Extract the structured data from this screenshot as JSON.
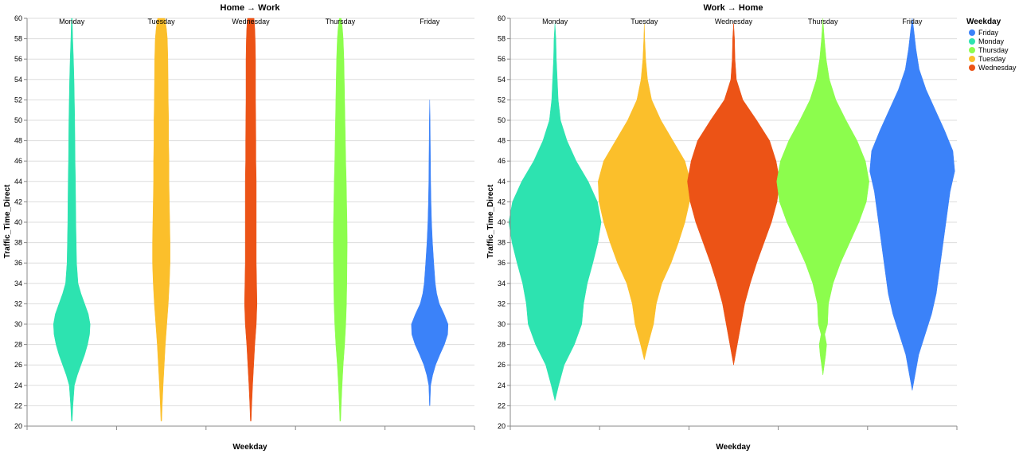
{
  "chart_data": [
    {
      "type": "violin",
      "title": "Home → Work",
      "xlabel": "Weekday",
      "ylabel": "Traffic_Time_Direct",
      "ylim": [
        20,
        60
      ],
      "yticks": [
        20,
        22,
        24,
        26,
        28,
        30,
        32,
        34,
        36,
        38,
        40,
        42,
        44,
        46,
        48,
        50,
        52,
        54,
        56,
        58,
        60
      ],
      "grid": true,
      "categories": [
        "Monday",
        "Tuesday",
        "Wednesday",
        "Thursday",
        "Friday"
      ],
      "series": [
        {
          "category": "Monday",
          "color": "#2de3b0",
          "density": [
            [
              20.5,
              0.02
            ],
            [
              22,
              0.06
            ],
            [
              24,
              0.14
            ],
            [
              25,
              0.3
            ],
            [
              26,
              0.5
            ],
            [
              27,
              0.7
            ],
            [
              28,
              0.86
            ],
            [
              29,
              0.97
            ],
            [
              30,
              1.0
            ],
            [
              31,
              0.9
            ],
            [
              32,
              0.7
            ],
            [
              33,
              0.5
            ],
            [
              34,
              0.34
            ],
            [
              36,
              0.26
            ],
            [
              38,
              0.24
            ],
            [
              40,
              0.22
            ],
            [
              42,
              0.21
            ],
            [
              44,
              0.2
            ],
            [
              46,
              0.18
            ],
            [
              48,
              0.17
            ],
            [
              50,
              0.16
            ],
            [
              52,
              0.14
            ],
            [
              54,
              0.12
            ],
            [
              56,
              0.09
            ],
            [
              58,
              0.05
            ],
            [
              60,
              0.02
            ]
          ]
        },
        {
          "category": "Tuesday",
          "color": "#fbbf2b",
          "density": [
            [
              20.5,
              0.02
            ],
            [
              22,
              0.05
            ],
            [
              24,
              0.1
            ],
            [
              26,
              0.16
            ],
            [
              28,
              0.22
            ],
            [
              30,
              0.3
            ],
            [
              32,
              0.38
            ],
            [
              34,
              0.44
            ],
            [
              36,
              0.48
            ],
            [
              38,
              0.48
            ],
            [
              40,
              0.46
            ],
            [
              42,
              0.44
            ],
            [
              44,
              0.42
            ],
            [
              46,
              0.42
            ],
            [
              48,
              0.4
            ],
            [
              50,
              0.4
            ],
            [
              52,
              0.38
            ],
            [
              54,
              0.37
            ],
            [
              56,
              0.36
            ],
            [
              58,
              0.33
            ],
            [
              59,
              0.28
            ],
            [
              60,
              0.2
            ]
          ]
        },
        {
          "category": "Wednesday",
          "color": "#ec5316",
          "density": [
            [
              20.5,
              0.02
            ],
            [
              22,
              0.05
            ],
            [
              24,
              0.1
            ],
            [
              26,
              0.16
            ],
            [
              28,
              0.22
            ],
            [
              30,
              0.3
            ],
            [
              32,
              0.34
            ],
            [
              34,
              0.32
            ],
            [
              36,
              0.3
            ],
            [
              38,
              0.3
            ],
            [
              40,
              0.3
            ],
            [
              42,
              0.3
            ],
            [
              44,
              0.3
            ],
            [
              46,
              0.28
            ],
            [
              48,
              0.28
            ],
            [
              50,
              0.27
            ],
            [
              52,
              0.26
            ],
            [
              54,
              0.26
            ],
            [
              56,
              0.26
            ],
            [
              58,
              0.24
            ],
            [
              59,
              0.22
            ],
            [
              60,
              0.18
            ]
          ]
        },
        {
          "category": "Thursday",
          "color": "#8cfd4d",
          "density": [
            [
              20.5,
              0.02
            ],
            [
              22,
              0.05
            ],
            [
              24,
              0.1
            ],
            [
              26,
              0.16
            ],
            [
              28,
              0.24
            ],
            [
              30,
              0.3
            ],
            [
              32,
              0.34
            ],
            [
              34,
              0.36
            ],
            [
              36,
              0.37
            ],
            [
              38,
              0.38
            ],
            [
              40,
              0.37
            ],
            [
              42,
              0.35
            ],
            [
              44,
              0.33
            ],
            [
              46,
              0.3
            ],
            [
              48,
              0.28
            ],
            [
              50,
              0.26
            ],
            [
              52,
              0.24
            ],
            [
              54,
              0.22
            ],
            [
              56,
              0.2
            ],
            [
              58,
              0.16
            ],
            [
              59,
              0.12
            ],
            [
              60,
              0.05
            ]
          ]
        },
        {
          "category": "Friday",
          "color": "#3b82f9",
          "density": [
            [
              22,
              0.01
            ],
            [
              24,
              0.05
            ],
            [
              25,
              0.16
            ],
            [
              26,
              0.32
            ],
            [
              27,
              0.55
            ],
            [
              28,
              0.8
            ],
            [
              29,
              0.98
            ],
            [
              30,
              1.0
            ],
            [
              31,
              0.78
            ],
            [
              32,
              0.52
            ],
            [
              33,
              0.38
            ],
            [
              34,
              0.3
            ],
            [
              36,
              0.22
            ],
            [
              38,
              0.15
            ],
            [
              40,
              0.1
            ],
            [
              42,
              0.07
            ],
            [
              44,
              0.05
            ],
            [
              46,
              0.04
            ],
            [
              48,
              0.03
            ],
            [
              50,
              0.02
            ],
            [
              52,
              0.0
            ]
          ]
        }
      ]
    },
    {
      "type": "violin",
      "title": "Work → Home",
      "xlabel": "Weekday",
      "ylabel": "Traffic_Time_Direct",
      "ylim": [
        20,
        60
      ],
      "yticks": [
        20,
        22,
        24,
        26,
        28,
        30,
        32,
        34,
        36,
        38,
        40,
        42,
        44,
        46,
        48,
        50,
        52,
        54,
        56,
        58,
        60
      ],
      "grid": true,
      "categories": [
        "Monday",
        "Tuesday",
        "Wednesday",
        "Thursday",
        "Friday"
      ],
      "series": [
        {
          "category": "Monday",
          "color": "#2de3b0",
          "density": [
            [
              22.5,
              0.0
            ],
            [
              24,
              0.08
            ],
            [
              26,
              0.2
            ],
            [
              28,
              0.42
            ],
            [
              30,
              0.58
            ],
            [
              32,
              0.62
            ],
            [
              34,
              0.7
            ],
            [
              36,
              0.82
            ],
            [
              38,
              0.93
            ],
            [
              40,
              1.0
            ],
            [
              42,
              0.92
            ],
            [
              44,
              0.72
            ],
            [
              46,
              0.46
            ],
            [
              48,
              0.26
            ],
            [
              50,
              0.12
            ],
            [
              52,
              0.07
            ],
            [
              54,
              0.05
            ],
            [
              56,
              0.03
            ],
            [
              58,
              0.02
            ],
            [
              59.5,
              0.0
            ]
          ]
        },
        {
          "category": "Tuesday",
          "color": "#fbbf2b",
          "density": [
            [
              26.5,
              0.0
            ],
            [
              28,
              0.08
            ],
            [
              30,
              0.2
            ],
            [
              32,
              0.26
            ],
            [
              34,
              0.38
            ],
            [
              36,
              0.58
            ],
            [
              38,
              0.74
            ],
            [
              40,
              0.88
            ],
            [
              42,
              0.98
            ],
            [
              44,
              1.0
            ],
            [
              46,
              0.88
            ],
            [
              48,
              0.62
            ],
            [
              50,
              0.36
            ],
            [
              52,
              0.16
            ],
            [
              54,
              0.07
            ],
            [
              56,
              0.03
            ],
            [
              58,
              0.01
            ],
            [
              59.5,
              0.0
            ]
          ]
        },
        {
          "category": "Wednesday",
          "color": "#ec5316",
          "density": [
            [
              26,
              0.0
            ],
            [
              28,
              0.08
            ],
            [
              30,
              0.16
            ],
            [
              32,
              0.24
            ],
            [
              34,
              0.36
            ],
            [
              36,
              0.5
            ],
            [
              38,
              0.66
            ],
            [
              40,
              0.82
            ],
            [
              42,
              0.94
            ],
            [
              44,
              1.0
            ],
            [
              46,
              0.92
            ],
            [
              48,
              0.78
            ],
            [
              50,
              0.5
            ],
            [
              52,
              0.2
            ],
            [
              54,
              0.06
            ],
            [
              56,
              0.03
            ],
            [
              58,
              0.02
            ],
            [
              59.5,
              0.0
            ]
          ]
        },
        {
          "category": "Thursday",
          "color": "#8cfd4d",
          "density": [
            [
              25,
              0.0
            ],
            [
              27,
              0.06
            ],
            [
              28,
              0.08
            ],
            [
              29,
              0.04
            ],
            [
              30,
              0.1
            ],
            [
              32,
              0.12
            ],
            [
              34,
              0.22
            ],
            [
              36,
              0.38
            ],
            [
              38,
              0.58
            ],
            [
              40,
              0.78
            ],
            [
              42,
              0.94
            ],
            [
              44,
              1.0
            ],
            [
              46,
              0.92
            ],
            [
              48,
              0.74
            ],
            [
              50,
              0.5
            ],
            [
              52,
              0.28
            ],
            [
              54,
              0.14
            ],
            [
              56,
              0.07
            ],
            [
              58,
              0.03
            ],
            [
              60,
              0.0
            ]
          ]
        },
        {
          "category": "Friday",
          "color": "#3b82f9",
          "density": [
            [
              23.5,
              0.0
            ],
            [
              25,
              0.06
            ],
            [
              27,
              0.14
            ],
            [
              29,
              0.28
            ],
            [
              31,
              0.42
            ],
            [
              33,
              0.52
            ],
            [
              35,
              0.58
            ],
            [
              37,
              0.64
            ],
            [
              39,
              0.7
            ],
            [
              41,
              0.76
            ],
            [
              43,
              0.82
            ],
            [
              45,
              0.92
            ],
            [
              47,
              0.88
            ],
            [
              49,
              0.7
            ],
            [
              51,
              0.5
            ],
            [
              53,
              0.3
            ],
            [
              55,
              0.15
            ],
            [
              57,
              0.08
            ],
            [
              59,
              0.03
            ],
            [
              60,
              0.0
            ]
          ]
        }
      ]
    }
  ],
  "legend": {
    "title": "Weekday",
    "position": "top-right",
    "items": [
      {
        "label": "Friday",
        "color": "#3b82f9"
      },
      {
        "label": "Monday",
        "color": "#2de3b0"
      },
      {
        "label": "Thursday",
        "color": "#8cfd4d"
      },
      {
        "label": "Tuesday",
        "color": "#fbbf2b"
      },
      {
        "label": "Wednesday",
        "color": "#ec5316"
      }
    ]
  }
}
